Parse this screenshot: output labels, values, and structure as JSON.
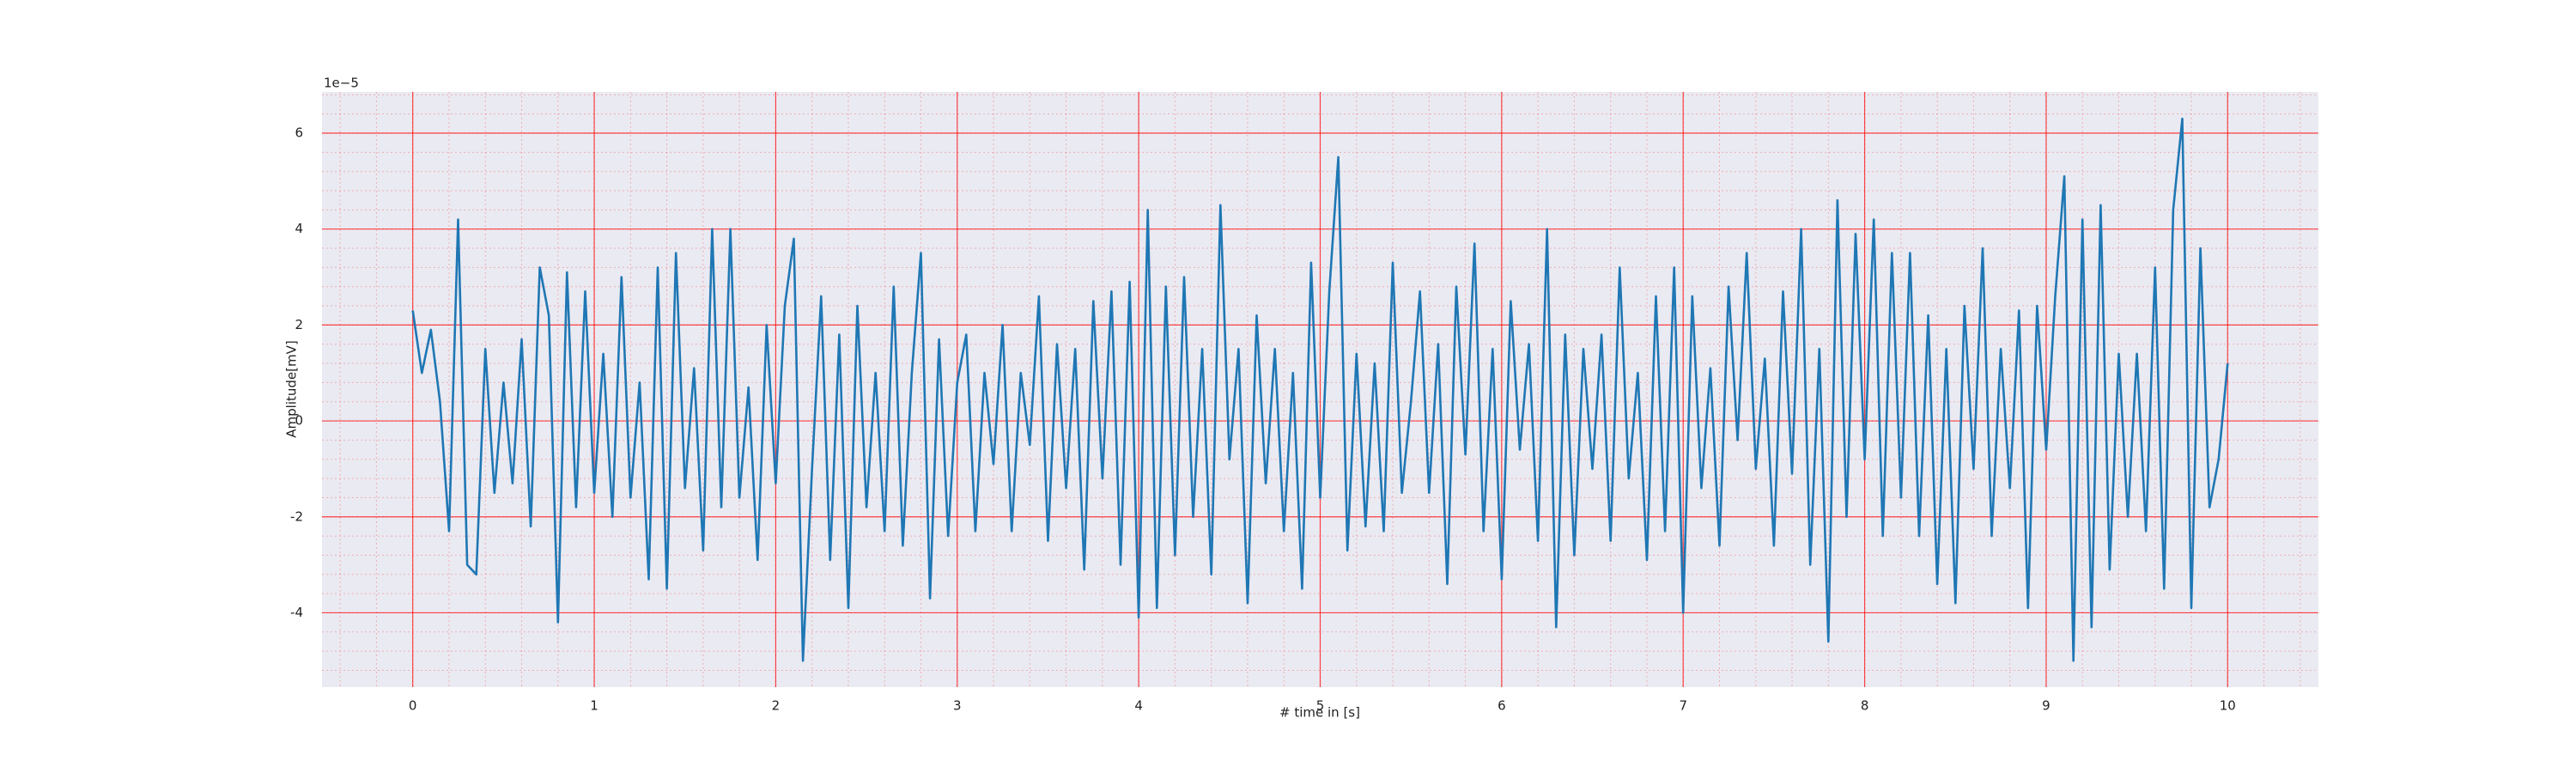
{
  "chart_data": {
    "type": "line",
    "x_label": "# time in [s]",
    "y_label": "Amplitude[mV]",
    "y_offset_label": "1e−5",
    "xlim": [
      -0.5,
      10.5
    ],
    "ylim": [
      -5.55,
      6.86
    ],
    "xticks": [
      0,
      1,
      2,
      3,
      4,
      5,
      6,
      7,
      8,
      9,
      10
    ],
    "yticks": [
      -4,
      -2,
      0,
      2,
      4,
      6
    ],
    "minor_xticks": [
      -0.4,
      -0.2,
      0,
      0.2,
      0.4,
      0.6,
      0.8,
      1,
      1.2,
      1.4,
      1.6,
      1.8,
      2,
      2.2,
      2.4,
      2.6,
      2.8,
      3,
      3.2,
      3.4,
      3.6,
      3.8,
      4,
      4.2,
      4.4,
      4.6,
      4.8,
      5,
      5.2,
      5.4,
      5.6,
      5.8,
      6,
      6.2,
      6.4,
      6.6,
      6.8,
      7,
      7.2,
      7.4,
      7.6,
      7.8,
      8,
      8.2,
      8.4,
      8.6,
      8.8,
      9,
      9.2,
      9.4,
      9.6,
      9.8,
      10,
      10.2,
      10.4
    ],
    "minor_yticks": [
      -5.2,
      -4.8,
      -4.4,
      -4,
      -3.6,
      -3.2,
      -2.8,
      -2.4,
      -2,
      -1.6,
      -1.2,
      -0.8,
      -0.4,
      0,
      0.4,
      0.8,
      1.2,
      1.6,
      2,
      2.4,
      2.8,
      3.2,
      3.6,
      4,
      4.4,
      4.8,
      5.2,
      5.6,
      6,
      6.4,
      6.8
    ],
    "grid": true,
    "grid_color": "#ff0000",
    "background": "#eaeaf2",
    "series": [
      {
        "color": "#1f77b4",
        "x": [
          0,
          0.05,
          0.1,
          0.15,
          0.2,
          0.25,
          0.3,
          0.35,
          0.4,
          0.45,
          0.5,
          0.55,
          0.6,
          0.65,
          0.7,
          0.75,
          0.8,
          0.85,
          0.9,
          0.95,
          1,
          1.05,
          1.1,
          1.15,
          1.2,
          1.25,
          1.3,
          1.35,
          1.4,
          1.45,
          1.5,
          1.55,
          1.6,
          1.65,
          1.7,
          1.75,
          1.8,
          1.85,
          1.9,
          1.95,
          2,
          2.05,
          2.1,
          2.15,
          2.2,
          2.25,
          2.3,
          2.35,
          2.4,
          2.45,
          2.5,
          2.55,
          2.6,
          2.65,
          2.7,
          2.75,
          2.8,
          2.85,
          2.9,
          2.95,
          3,
          3.05,
          3.1,
          3.15,
          3.2,
          3.25,
          3.3,
          3.35,
          3.4,
          3.45,
          3.5,
          3.55,
          3.6,
          3.65,
          3.7,
          3.75,
          3.8,
          3.85,
          3.9,
          3.95,
          4,
          4.05,
          4.1,
          4.15,
          4.2,
          4.25,
          4.3,
          4.35,
          4.4,
          4.45,
          4.5,
          4.55,
          4.6,
          4.65,
          4.7,
          4.75,
          4.8,
          4.85,
          4.9,
          4.95,
          5,
          5.05,
          5.1,
          5.15,
          5.2,
          5.25,
          5.3,
          5.35,
          5.4,
          5.45,
          5.5,
          5.55,
          5.6,
          5.65,
          5.7,
          5.75,
          5.8,
          5.85,
          5.9,
          5.95,
          6,
          6.05,
          6.1,
          6.15,
          6.2,
          6.25,
          6.3,
          6.35,
          6.4,
          6.45,
          6.5,
          6.55,
          6.6,
          6.65,
          6.7,
          6.75,
          6.8,
          6.85,
          6.9,
          6.95,
          7,
          7.05,
          7.1,
          7.15,
          7.2,
          7.25,
          7.3,
          7.35,
          7.4,
          7.45,
          7.5,
          7.55,
          7.6,
          7.65,
          7.7,
          7.75,
          7.8,
          7.85,
          7.9,
          7.95,
          8,
          8.05,
          8.1,
          8.15,
          8.2,
          8.25,
          8.3,
          8.35,
          8.4,
          8.45,
          8.5,
          8.55,
          8.6,
          8.65,
          8.7,
          8.75,
          8.8,
          8.85,
          8.9,
          8.95,
          9,
          9.05,
          9.1,
          9.15,
          9.2,
          9.25,
          9.3,
          9.35,
          9.4,
          9.45,
          9.5,
          9.55,
          9.6,
          9.65,
          9.7,
          9.75,
          9.8,
          9.85,
          9.9,
          9.95,
          10
        ],
        "values": [
          2.3,
          1.0,
          1.9,
          0.4,
          -2.3,
          4.2,
          -3.0,
          -3.2,
          1.5,
          -1.5,
          0.8,
          -1.3,
          1.7,
          -2.2,
          3.2,
          2.2,
          -4.2,
          3.1,
          -1.8,
          2.7,
          -1.5,
          1.4,
          -2.0,
          3.0,
          -1.6,
          0.8,
          -3.3,
          3.2,
          -3.5,
          3.5,
          -1.4,
          1.1,
          -2.7,
          4.0,
          -1.8,
          4.0,
          -1.6,
          0.7,
          -2.9,
          2.0,
          -1.3,
          2.4,
          3.8,
          -5.0,
          -1.0,
          2.6,
          -2.9,
          1.8,
          -3.9,
          2.4,
          -1.8,
          1.0,
          -2.3,
          2.8,
          -2.6,
          1.0,
          3.5,
          -3.7,
          1.7,
          -2.4,
          0.8,
          1.8,
          -2.3,
          1.0,
          -0.9,
          2.0,
          -2.3,
          1.0,
          -0.5,
          2.6,
          -2.5,
          1.6,
          -1.4,
          1.5,
          -3.1,
          2.5,
          -1.2,
          2.7,
          -3.0,
          2.9,
          -4.1,
          4.4,
          -3.9,
          2.8,
          -2.8,
          3.0,
          -2.0,
          1.5,
          -3.2,
          4.5,
          -0.8,
          1.5,
          -3.8,
          2.2,
          -1.3,
          1.5,
          -2.3,
          1.0,
          -3.5,
          3.3,
          -1.6,
          2.7,
          5.5,
          -2.7,
          1.4,
          -2.2,
          1.2,
          -2.3,
          3.3,
          -1.5,
          0.4,
          2.7,
          -1.5,
          1.6,
          -3.4,
          2.8,
          -0.7,
          3.7,
          -2.3,
          1.5,
          -3.3,
          2.5,
          -0.6,
          1.6,
          -2.5,
          4.0,
          -4.3,
          1.8,
          -2.8,
          1.5,
          -1.0,
          1.8,
          -2.5,
          3.2,
          -1.2,
          1.0,
          -2.9,
          2.6,
          -2.3,
          3.2,
          -4.0,
          2.6,
          -1.4,
          1.1,
          -2.6,
          2.8,
          -0.4,
          3.5,
          -1.0,
          1.3,
          -2.6,
          2.7,
          -1.1,
          4.0,
          -3.0,
          1.5,
          -4.6,
          4.6,
          -2.0,
          3.9,
          -0.8,
          4.2,
          -2.4,
          3.5,
          -1.6,
          3.5,
          -2.4,
          2.2,
          -3.4,
          1.5,
          -3.8,
          2.4,
          -1.0,
          3.6,
          -2.4,
          1.5,
          -1.4,
          2.3,
          -3.9,
          2.4,
          -0.6,
          2.6,
          5.1,
          -5.0,
          4.2,
          -4.3,
          4.5,
          -3.1,
          1.4,
          -2.0,
          1.4,
          -2.3,
          3.2,
          -3.5,
          4.4,
          6.3,
          -3.9,
          3.6,
          -1.8,
          -0.8,
          1.2
        ]
      }
    ]
  }
}
